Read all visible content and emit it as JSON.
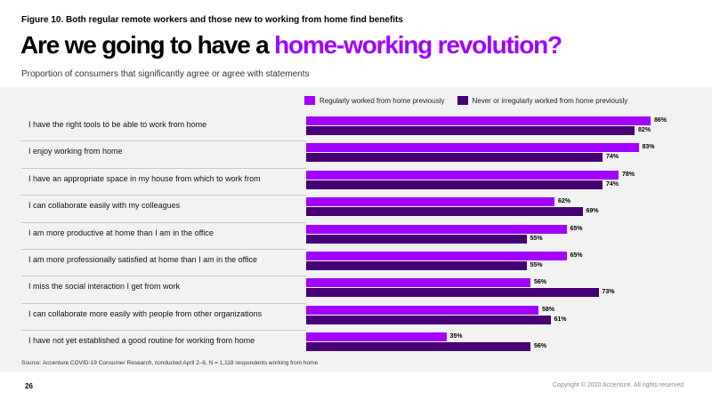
{
  "figure_label": "Figure 10. Both regular remote workers and those new to working from home find benefits",
  "headline": {
    "main": "Are we going to have a ",
    "accent": "home-working revolution?"
  },
  "subtitle": "Proportion of consumers that significantly agree or agree with statements",
  "colors": {
    "regular": "#a100ff",
    "new": "#460073",
    "panel": "#f2f2f2"
  },
  "chart_data": {
    "type": "bar",
    "orientation": "horizontal",
    "xlim": [
      0,
      100
    ],
    "grid": false,
    "legend_position": "top-right",
    "categories": [
      "I have the right tools to be able to work from home",
      "I enjoy working from home",
      "I have an appropriate space in my house from which to work from",
      "I can collaborate easily with my colleagues",
      "I am more productive at home than I am in the office",
      "I am more professionally satisfied at home than I am in the office",
      "I miss the social interaction I get from work",
      "I can collaborate more easily with people from other organizations",
      "I have not yet established a good routine for working from home"
    ],
    "series": [
      {
        "name": "Regularly worked from home previously",
        "values": [
          86,
          83,
          78,
          62,
          65,
          65,
          56,
          58,
          35
        ]
      },
      {
        "name": "Never or irregularly worked from home previously",
        "values": [
          82,
          74,
          74,
          69,
          55,
          55,
          73,
          61,
          56
        ]
      }
    ],
    "value_labels": [
      [
        "86%",
        "83%",
        "78%",
        "62%",
        "65%",
        "65%",
        "56%",
        "58%",
        "35%"
      ],
      [
        "82%",
        "74%",
        "74%",
        "69%",
        "55%",
        "55%",
        "73%",
        "61%",
        "56%"
      ]
    ]
  },
  "source": "Source: Accenture COVID-19 Consumer Research, conducted April 2–6, N = 1,118 respondents working from home",
  "page_number": "26",
  "copyright": "Copyright © 2020 Accenture. All rights reserved."
}
